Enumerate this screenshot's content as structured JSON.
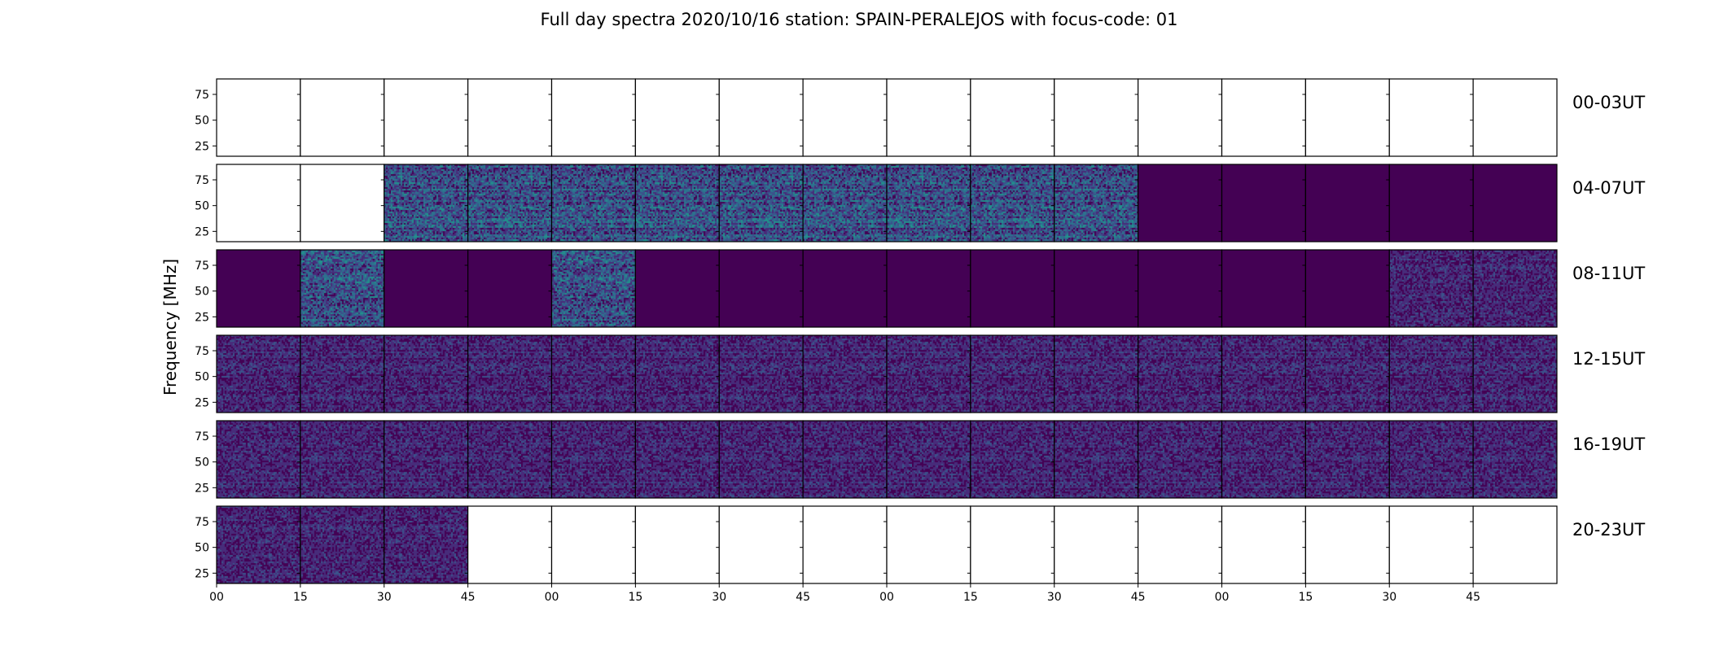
{
  "chart_data": {
    "type": "heatmap",
    "title": "Full day spectra 2020/10/16 station: SPAIN-PERALEJOS with focus-code: 01",
    "ylabel": "Frequency [MHz]",
    "xlabel": "",
    "y_ticks": [
      25,
      50,
      75
    ],
    "ylim": [
      15,
      90
    ],
    "x_ticks": [
      "00",
      "15",
      "30",
      "45",
      "00",
      "15",
      "30",
      "45",
      "00",
      "15",
      "30",
      "45",
      "00",
      "15",
      "30",
      "45"
    ],
    "colormap_colors": [
      "#440154",
      "#472c7a",
      "#3b528b",
      "#2c728e",
      "#21918c",
      "#28ae80",
      "#5ec962"
    ],
    "rows": [
      {
        "label": "00-03UT",
        "panels": [
          "none",
          "none",
          "none",
          "none",
          "none",
          "none",
          "none",
          "none",
          "none",
          "none",
          "none",
          "none",
          "none",
          "none",
          "none",
          "none"
        ]
      },
      {
        "label": "04-07UT",
        "panels": [
          "none",
          "none",
          "high",
          "high",
          "high",
          "high",
          "high",
          "high",
          "high",
          "high",
          "high",
          "low",
          "low",
          "low",
          "low",
          "low"
        ]
      },
      {
        "label": "08-11UT",
        "panels": [
          "low",
          "high",
          "low",
          "low",
          "high",
          "low",
          "low",
          "low",
          "low",
          "low",
          "low",
          "low",
          "low",
          "low",
          "mid",
          "mid"
        ]
      },
      {
        "label": "12-15UT",
        "panels": [
          "mid",
          "mid",
          "mid",
          "mid",
          "mid",
          "mid",
          "mid",
          "mid",
          "mid",
          "mid",
          "mid",
          "mid",
          "mid",
          "mid",
          "mid",
          "mid"
        ]
      },
      {
        "label": "16-19UT",
        "panels": [
          "mid",
          "mid",
          "mid",
          "mid",
          "mid",
          "mid",
          "mid",
          "mid",
          "mid",
          "mid",
          "mid",
          "mid",
          "mid",
          "mid",
          "mid",
          "mid"
        ]
      },
      {
        "label": "20-23UT",
        "panels": [
          "mid",
          "mid",
          "mid",
          "none",
          "none",
          "none",
          "none",
          "none",
          "none",
          "none",
          "none",
          "none",
          "none",
          "none",
          "none",
          "none"
        ]
      }
    ]
  }
}
